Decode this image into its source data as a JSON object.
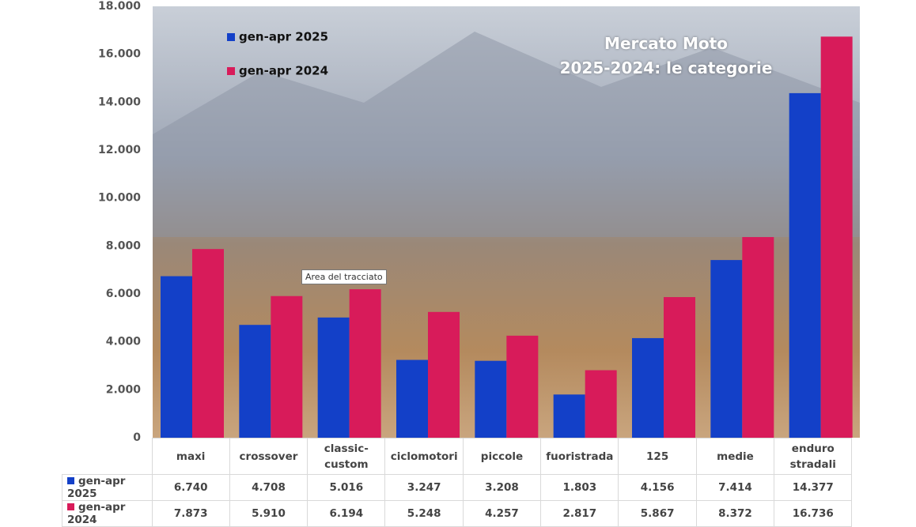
{
  "chart_data": {
    "type": "bar",
    "title": "Mercato Moto\n2025-2024: le categorie",
    "annotation": "Area del tracciato",
    "categories": [
      "maxi",
      "crossover",
      "classic-\ncustom",
      "ciclomotori",
      "piccole",
      "fuoristrada",
      "125",
      "medie",
      "enduro\nstradali"
    ],
    "series": [
      {
        "name": "gen-apr 2025",
        "color": "#1340c8",
        "values": [
          6740,
          4708,
          5016,
          3247,
          3208,
          1803,
          4156,
          7414,
          14377
        ],
        "value_labels": [
          "6.740",
          "4.708",
          "5.016",
          "3.247",
          "3.208",
          "1.803",
          "4.156",
          "7.414",
          "14.377"
        ]
      },
      {
        "name": "gen-apr 2024",
        "color": "#d81b5a",
        "values": [
          7873,
          5910,
          6194,
          5248,
          4257,
          2817,
          5867,
          8372,
          16736
        ],
        "value_labels": [
          "7.873",
          "5.910",
          "6.194",
          "5.248",
          "4.257",
          "2.817",
          "5.867",
          "8.372",
          "16.736"
        ]
      }
    ],
    "ylim": [
      0,
      18000
    ],
    "yticks": [
      0,
      {
        "value": 2000,
        "label": "2.000"
      },
      {
        "value": 4000,
        "label": "4.000"
      },
      {
        "value": 6000,
        "label": "6.000"
      },
      {
        "value": 8000,
        "label": "8.000"
      },
      {
        "value": 10000,
        "label": "10.000"
      },
      {
        "value": 12000,
        "label": "12.000"
      },
      {
        "value": 14000,
        "label": "14.000"
      },
      {
        "value": 16000,
        "label": "16.000"
      },
      {
        "value": 18000,
        "label": "18.000"
      }
    ]
  }
}
